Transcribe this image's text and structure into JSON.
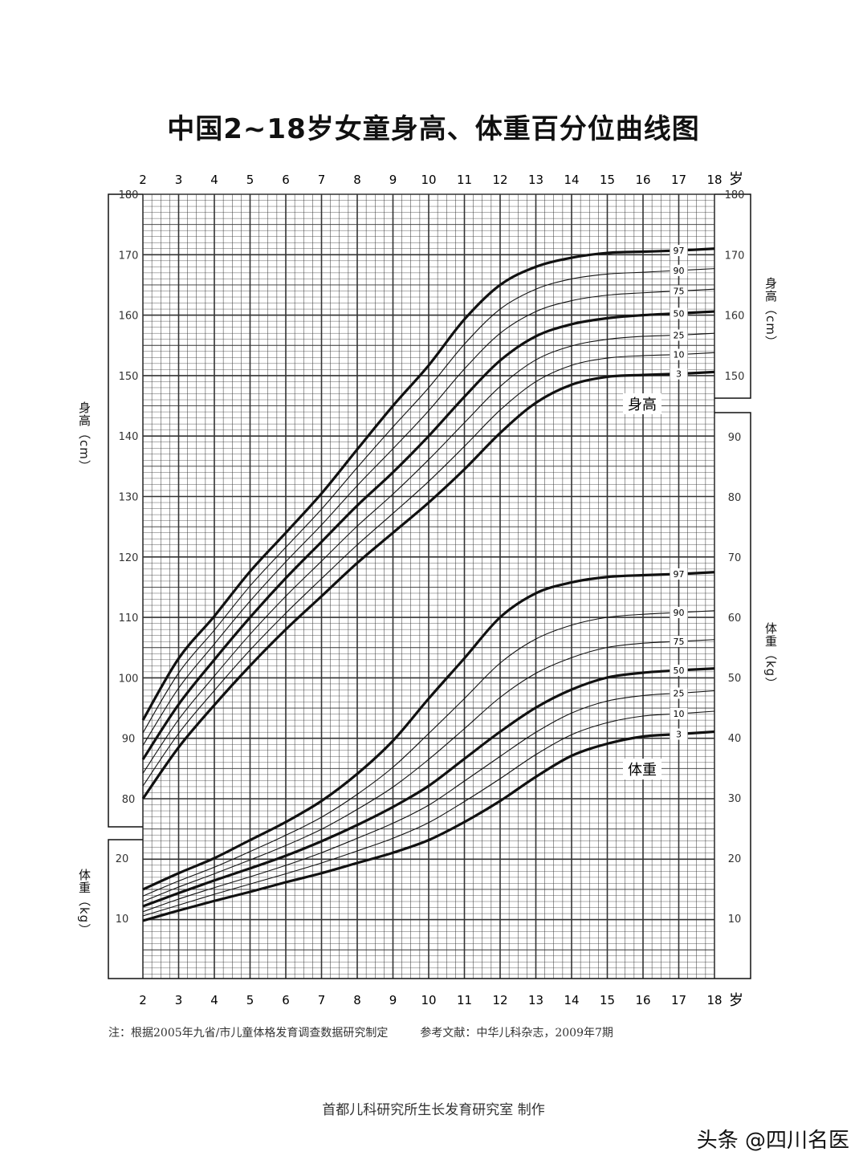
{
  "title": "中国2~18岁女童身高、体重百分位曲线图",
  "notes": {
    "basis": "注：根据2005年九省/市儿童体格发育调查数据研究制定",
    "reference": "参考文献：中华儿科杂志，2009年7期"
  },
  "maker": "首都儿科研究所生长发育研究室 制作",
  "watermark": "头条 @四川名医",
  "chart_data": {
    "type": "line",
    "title": "中国2~18岁女童身高、体重百分位曲线图",
    "x": [
      2,
      3,
      4,
      5,
      6,
      7,
      8,
      9,
      10,
      11,
      12,
      13,
      14,
      15,
      16,
      17,
      18
    ],
    "x_unit": "岁",
    "xlim": [
      2,
      18
    ],
    "grid": true,
    "height_axis": {
      "label": "身高（cm）",
      "ylim": [
        80,
        180
      ],
      "ticks": [
        80,
        90,
        100,
        110,
        120,
        130,
        140,
        150,
        160,
        170,
        180
      ],
      "right_ticks": [
        150,
        160,
        170,
        180
      ]
    },
    "weight_axis": {
      "label": "体重（kg）",
      "left_ticks": [
        10,
        20
      ],
      "right_ticks": [
        10,
        20,
        30,
        40,
        50,
        60,
        70,
        80,
        90
      ]
    },
    "height_label": "身高",
    "weight_label": "体重",
    "percentiles": [
      "3",
      "10",
      "25",
      "50",
      "75",
      "90",
      "97"
    ],
    "height_series": [
      {
        "name": "3",
        "values": [
          80,
          88.5,
          95.5,
          102,
          108,
          113.5,
          119,
          124,
          129,
          134.5,
          140.5,
          145.5,
          148.5,
          149.8,
          150.1,
          150.3,
          150.6
        ]
      },
      {
        "name": "10",
        "values": [
          82.1,
          90.8,
          97.9,
          104.6,
          110.7,
          116.4,
          122,
          127.2,
          132.5,
          138.3,
          144.3,
          149,
          151.7,
          152.9,
          153.3,
          153.5,
          153.8
        ]
      },
      {
        "name": "25",
        "values": [
          84.2,
          93.1,
          100.3,
          107.2,
          113.5,
          119.3,
          125.1,
          130.4,
          136.1,
          142.2,
          148.2,
          152.6,
          154.9,
          156,
          156.5,
          156.7,
          157
        ]
      },
      {
        "name": "50",
        "values": [
          86.5,
          95.6,
          103,
          110,
          116.5,
          122.5,
          128.5,
          134,
          140,
          146.5,
          152.5,
          156.5,
          158.5,
          159.5,
          160,
          160.3,
          160.6
        ]
      },
      {
        "name": "75",
        "values": [
          88.8,
          98.3,
          105.6,
          112.7,
          119.2,
          125.3,
          131.8,
          137.9,
          144.2,
          151.1,
          157,
          160.6,
          162.4,
          163.3,
          163.7,
          164,
          164.3
        ]
      },
      {
        "name": "90",
        "values": [
          90.9,
          100.8,
          107.9,
          115.2,
          121.6,
          127.9,
          134.8,
          141.5,
          148,
          155.2,
          161,
          164.3,
          166,
          166.8,
          167.1,
          167.4,
          167.7
        ]
      },
      {
        "name": "97",
        "values": [
          93,
          103.2,
          110.2,
          117.6,
          124,
          130.5,
          137.8,
          145,
          151.7,
          159.3,
          165,
          168,
          169.5,
          170.3,
          170.5,
          170.7,
          171
        ]
      }
    ],
    "weight_series": [
      {
        "name": "3",
        "values": [
          9.6,
          11.3,
          12.9,
          14.4,
          16,
          17.5,
          19.2,
          20.9,
          23,
          26,
          29.5,
          33.5,
          37,
          39,
          40.2,
          40.6,
          41
        ]
      },
      {
        "name": "10",
        "values": [
          10.4,
          12.2,
          14,
          15.7,
          17.4,
          19.2,
          21.2,
          23.3,
          25.9,
          29.4,
          33.2,
          37.2,
          40.5,
          42.5,
          43.6,
          44,
          44.4
        ]
      },
      {
        "name": "25",
        "values": [
          11.1,
          13.2,
          15.1,
          16.9,
          18.8,
          20.9,
          23.3,
          25.8,
          28.8,
          32.8,
          36.9,
          40.9,
          44.1,
          46.1,
          47,
          47.4,
          47.8
        ]
      },
      {
        "name": "50",
        "values": [
          12,
          14.2,
          16.3,
          18.3,
          20.4,
          22.8,
          25.5,
          28.5,
          32,
          36.5,
          41,
          45,
          48,
          50,
          50.8,
          51.2,
          51.5
        ]
      },
      {
        "name": "75",
        "values": [
          12.8,
          15.2,
          17.4,
          19.7,
          22.1,
          24.8,
          28.1,
          31.8,
          36.4,
          41.5,
          46.7,
          50.7,
          53.3,
          55,
          55.7,
          56,
          56.3
        ]
      },
      {
        "name": "90",
        "values": [
          13.7,
          16.2,
          18.5,
          21.1,
          23.8,
          26.8,
          30.6,
          35.1,
          40.7,
          46.5,
          52.4,
          56.4,
          58.7,
          60,
          60.5,
          60.8,
          61.1
        ]
      },
      {
        "name": "97",
        "values": [
          14.8,
          17.5,
          20,
          23,
          26,
          29.5,
          34,
          39.5,
          46.5,
          53.2,
          60,
          64,
          65.8,
          66.7,
          67,
          67.2,
          67.5
        ]
      }
    ],
    "colors": {
      "line": "#111111",
      "grid": "#333333"
    }
  }
}
